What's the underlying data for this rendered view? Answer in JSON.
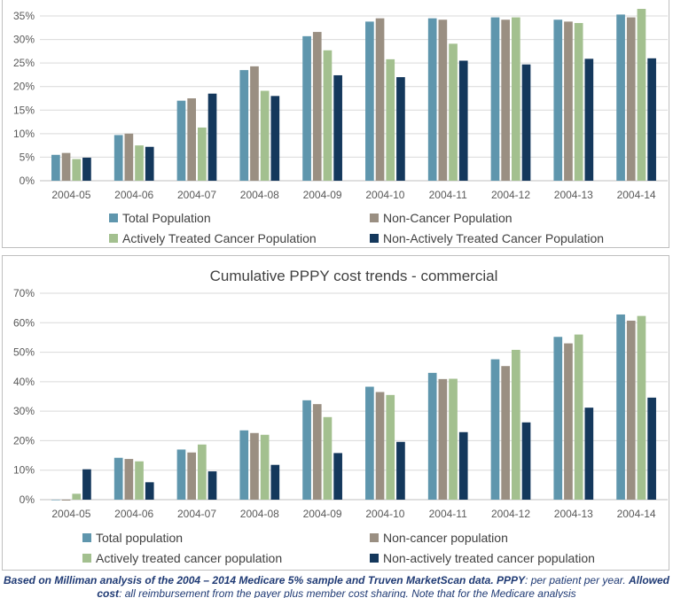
{
  "colors": {
    "total": "#5f96ad",
    "noncancer": "#9a8f82",
    "active": "#a3c08f",
    "nonactive": "#14385c",
    "grid": "#d9d9d9"
  },
  "chart_data": [
    {
      "type": "bar",
      "title": "",
      "categories": [
        "2004-05",
        "2004-06",
        "2004-07",
        "2004-08",
        "2004-09",
        "2004-10",
        "2004-11",
        "2004-12",
        "2004-13",
        "2004-14"
      ],
      "ylim": [
        0,
        35
      ],
      "yticks": [
        "0%",
        "5%",
        "10%",
        "15%",
        "20%",
        "25%",
        "30%",
        "35%"
      ],
      "grid": true,
      "legend_position": "bottom",
      "series": [
        {
          "name": "Total Population",
          "values": [
            5.5,
            9.7,
            17.0,
            23.5,
            30.7,
            33.8,
            34.5,
            34.7,
            34.2,
            35.3
          ]
        },
        {
          "name": "Non-Cancer Population",
          "values": [
            5.9,
            10.0,
            17.5,
            24.3,
            31.6,
            34.5,
            34.2,
            34.2,
            33.8,
            34.7
          ]
        },
        {
          "name": "Actively Treated Cancer Population",
          "values": [
            4.6,
            7.5,
            11.3,
            19.1,
            27.7,
            25.8,
            29.1,
            34.7,
            33.5,
            36.5
          ]
        },
        {
          "name": "Non-Actively Treated Cancer Population",
          "values": [
            4.9,
            7.2,
            18.5,
            18.0,
            22.4,
            22.0,
            25.5,
            24.7,
            25.9,
            26.0
          ]
        }
      ]
    },
    {
      "type": "bar",
      "title": "Cumulative PPPY cost trends - commercial",
      "categories": [
        "2004-05",
        "2004-06",
        "2004-07",
        "2004-08",
        "2004-09",
        "2004-10",
        "2004-11",
        "2004-12",
        "2004-13",
        "2004-14"
      ],
      "ylim": [
        0,
        70
      ],
      "yticks": [
        "0%",
        "10%",
        "20%",
        "30%",
        "40%",
        "50%",
        "60%",
        "70%"
      ],
      "grid": true,
      "legend_position": "bottom",
      "series": [
        {
          "name": "Total population",
          "values": [
            0.0,
            14.2,
            17.0,
            23.5,
            33.7,
            38.3,
            43.0,
            47.6,
            55.2,
            62.8
          ]
        },
        {
          "name": "Non-cancer population",
          "values": [
            -0.3,
            13.8,
            16.0,
            22.6,
            32.4,
            36.5,
            40.9,
            45.3,
            53.0,
            60.7
          ]
        },
        {
          "name": "Actively treated cancer population",
          "values": [
            2.0,
            13.0,
            18.7,
            22.0,
            28.0,
            35.5,
            41.0,
            50.8,
            56.0,
            62.3
          ]
        },
        {
          "name": "Non-actively treated cancer population",
          "values": [
            10.3,
            5.9,
            9.6,
            11.8,
            15.8,
            19.6,
            22.9,
            26.2,
            31.2,
            34.6
          ]
        }
      ]
    }
  ],
  "footnote": {
    "bold_lead": "Based on Milliman analysis of the 2004 – 2014 Medicare 5% sample and Truven MarketScan data.",
    "pppy_term": "PPPY",
    "pppy_def": ": per patient per year.",
    "allowed_term": "Allowed cost",
    "allowed_def": ": all reimbursement from the payer plus member cost sharing. Note that for the Medicare analysis"
  }
}
